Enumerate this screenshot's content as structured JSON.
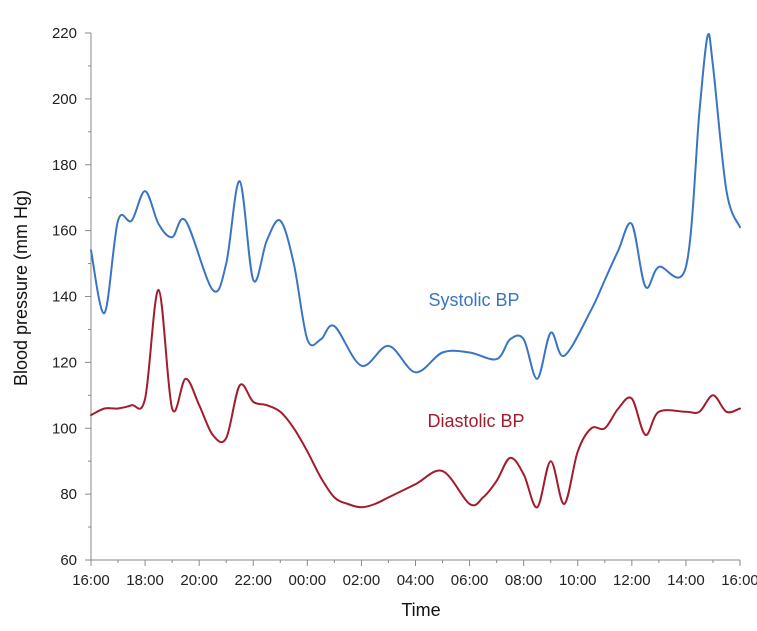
{
  "chart_data": {
    "type": "line",
    "title": "",
    "xlabel": "Time",
    "ylabel": "Blood pressure (mm Hg)",
    "ylim": [
      60,
      220
    ],
    "yticks": [
      60,
      80,
      100,
      120,
      140,
      160,
      180,
      200,
      220
    ],
    "xticks": [
      "16:00",
      "18:00",
      "20:00",
      "22:00",
      "00:00",
      "02:00",
      "04:00",
      "06:00",
      "08:00",
      "10:00",
      "12:00",
      "14:00",
      "16:00"
    ],
    "xlim_hours": [
      16,
      40
    ],
    "grid": false,
    "legend": "inline labels",
    "series": [
      {
        "name": "Systolic BP",
        "color": "#3a75c4",
        "points": [
          [
            16.0,
            154
          ],
          [
            16.5,
            135
          ],
          [
            17.0,
            163
          ],
          [
            17.5,
            163
          ],
          [
            18.0,
            172
          ],
          [
            18.5,
            162
          ],
          [
            19.0,
            158
          ],
          [
            19.5,
            163
          ],
          [
            20.5,
            142
          ],
          [
            21.0,
            150
          ],
          [
            21.5,
            175
          ],
          [
            22.0,
            145
          ],
          [
            22.5,
            157
          ],
          [
            23.0,
            163
          ],
          [
            23.5,
            150
          ],
          [
            24.0,
            127
          ],
          [
            24.5,
            127
          ],
          [
            25.0,
            131
          ],
          [
            26.0,
            119
          ],
          [
            27.0,
            125
          ],
          [
            28.0,
            117
          ],
          [
            29.0,
            123
          ],
          [
            30.0,
            123
          ],
          [
            31.0,
            121
          ],
          [
            31.5,
            127
          ],
          [
            32.0,
            127
          ],
          [
            32.5,
            115
          ],
          [
            33.0,
            129
          ],
          [
            33.5,
            122
          ],
          [
            34.5,
            136
          ],
          [
            35.0,
            145
          ],
          [
            35.5,
            154
          ],
          [
            36.0,
            162
          ],
          [
            36.5,
            143
          ],
          [
            37.0,
            149
          ],
          [
            38.0,
            149
          ],
          [
            38.5,
            196
          ],
          [
            38.8,
            219
          ],
          [
            39.0,
            210
          ],
          [
            39.5,
            172
          ],
          [
            40.0,
            161
          ]
        ]
      },
      {
        "name": "Diastolic BP",
        "color": "#a31c2e",
        "points": [
          [
            16.0,
            104
          ],
          [
            16.5,
            106
          ],
          [
            17.0,
            106
          ],
          [
            17.5,
            107
          ],
          [
            18.0,
            109
          ],
          [
            18.5,
            142
          ],
          [
            19.0,
            106
          ],
          [
            19.5,
            115
          ],
          [
            20.0,
            107
          ],
          [
            20.5,
            98
          ],
          [
            21.0,
            97
          ],
          [
            21.5,
            113
          ],
          [
            22.0,
            108
          ],
          [
            22.5,
            107
          ],
          [
            23.0,
            105
          ],
          [
            23.5,
            100
          ],
          [
            24.0,
            93
          ],
          [
            24.5,
            85
          ],
          [
            25.0,
            79
          ],
          [
            25.5,
            77
          ],
          [
            26.0,
            76
          ],
          [
            26.5,
            77
          ],
          [
            27.0,
            79
          ],
          [
            28.0,
            83
          ],
          [
            29.0,
            87
          ],
          [
            30.0,
            77
          ],
          [
            30.5,
            79
          ],
          [
            31.0,
            84
          ],
          [
            31.5,
            91
          ],
          [
            32.0,
            86
          ],
          [
            32.5,
            76
          ],
          [
            33.0,
            90
          ],
          [
            33.5,
            77
          ],
          [
            34.0,
            93
          ],
          [
            34.5,
            100
          ],
          [
            35.0,
            100
          ],
          [
            35.5,
            106
          ],
          [
            36.0,
            109
          ],
          [
            36.5,
            98
          ],
          [
            37.0,
            105
          ],
          [
            38.0,
            105
          ],
          [
            38.5,
            105
          ],
          [
            39.0,
            110
          ],
          [
            39.5,
            105
          ],
          [
            40.0,
            106
          ]
        ]
      }
    ]
  }
}
